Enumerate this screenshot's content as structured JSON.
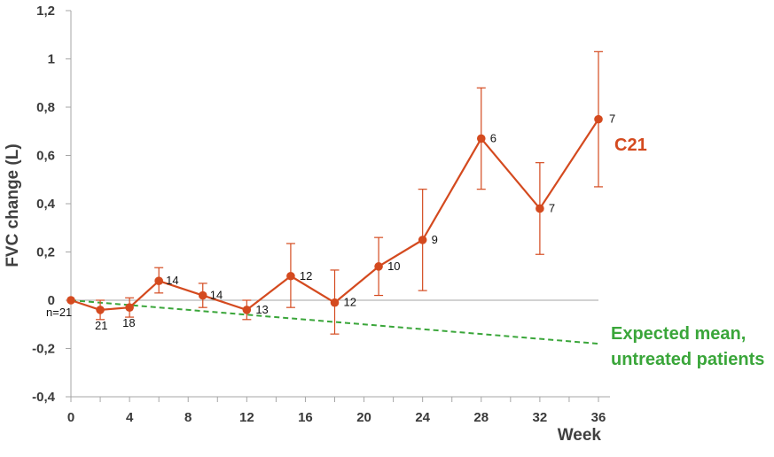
{
  "chart_data": {
    "type": "line",
    "ylabel": "FVC change (L)",
    "xlabel": "Week",
    "xlim": [
      0,
      36
    ],
    "ylim": [
      -0.4,
      1.2
    ],
    "x_ticks": [
      0,
      4,
      8,
      12,
      16,
      20,
      24,
      28,
      32,
      36
    ],
    "x_tick_labels": [
      "0",
      "4",
      "8",
      "12",
      "16",
      "20",
      "24",
      "28",
      "32",
      "36"
    ],
    "y_ticks": [
      -0.4,
      -0.2,
      0,
      0.2,
      0.4,
      0.6,
      0.8,
      1.0,
      1.2
    ],
    "y_tick_labels": [
      "-0,4",
      "-0,2",
      "0",
      "0,2",
      "0,4",
      "0,6",
      "0,8",
      "1",
      "1,2"
    ],
    "series": [
      {
        "name": "C21",
        "color": "#d44a1f",
        "points": [
          {
            "x": 0,
            "y": 0.0,
            "err_low": 0.0,
            "err_high": 0.0,
            "n": "n=21"
          },
          {
            "x": 2,
            "y": -0.04,
            "err_low": -0.08,
            "err_high": 0.0,
            "n": "21"
          },
          {
            "x": 4,
            "y": -0.03,
            "err_low": -0.07,
            "err_high": 0.01,
            "n": "18"
          },
          {
            "x": 6,
            "y": 0.08,
            "err_low": 0.03,
            "err_high": 0.135,
            "n": "14"
          },
          {
            "x": 9,
            "y": 0.02,
            "err_low": -0.03,
            "err_high": 0.07,
            "n": "14"
          },
          {
            "x": 12,
            "y": -0.04,
            "err_low": -0.08,
            "err_high": 0.0,
            "n": "13"
          },
          {
            "x": 15,
            "y": 0.1,
            "err_low": -0.03,
            "err_high": 0.235,
            "n": "12"
          },
          {
            "x": 18,
            "y": -0.01,
            "err_low": -0.14,
            "err_high": 0.125,
            "n": "12"
          },
          {
            "x": 21,
            "y": 0.14,
            "err_low": 0.02,
            "err_high": 0.26,
            "n": "10"
          },
          {
            "x": 24,
            "y": 0.25,
            "err_low": 0.04,
            "err_high": 0.46,
            "n": "9"
          },
          {
            "x": 28,
            "y": 0.67,
            "err_low": 0.46,
            "err_high": 0.88,
            "n": "6"
          },
          {
            "x": 32,
            "y": 0.38,
            "err_low": 0.19,
            "err_high": 0.57,
            "n": "7"
          },
          {
            "x": 36,
            "y": 0.75,
            "err_low": 0.47,
            "err_high": 1.03,
            "n": "7"
          }
        ]
      },
      {
        "name": "Expected mean, untreated patients",
        "name_lines": [
          "Expected mean,",
          "untreated patients"
        ],
        "color": "#3aa63a",
        "style": "dashed",
        "points": [
          {
            "x": 0,
            "y": 0.0
          },
          {
            "x": 36,
            "y": -0.18
          }
        ]
      }
    ],
    "zero_line": true
  }
}
